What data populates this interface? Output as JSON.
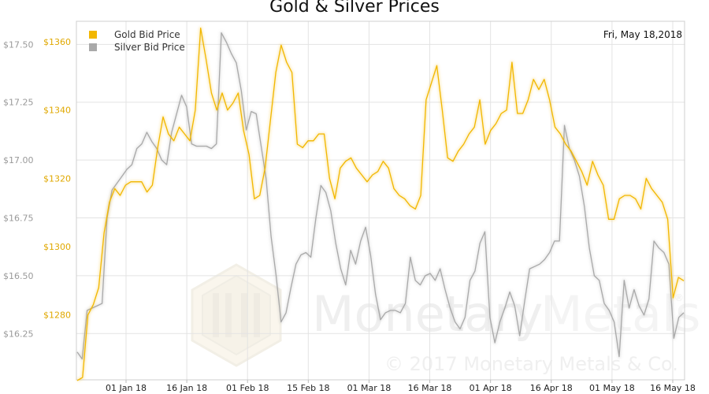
{
  "chart_data": {
    "type": "line",
    "title": "Gold & Silver Prices",
    "date_label": "Fri, May 18,2018",
    "grid": true,
    "legend_placement": "top-left",
    "x_ticks": [
      "01 Jan 18",
      "16 Jan 18",
      "01 Feb 18",
      "15 Feb 18",
      "01 Mar 18",
      "16 Mar 18",
      "01 Apr 18",
      "16 Apr 18",
      "01 May 18",
      "16 May 18"
    ],
    "left_axis": {
      "series": "Silver Bid Price",
      "unit_prefix": "$",
      "ticks": [
        "$16.25",
        "$16.50",
        "$16.75",
        "$17.00",
        "$17.25",
        "$17.50"
      ],
      "range": [
        16.05,
        17.6
      ]
    },
    "right_axis": {
      "series": "Gold Bid Price",
      "unit_prefix": "$",
      "ticks": [
        "$1280",
        "$1300",
        "$1320",
        "$1340",
        "$1360"
      ],
      "range": [
        1261,
        1366
      ]
    },
    "series": [
      {
        "name": "Gold Bid Price",
        "color": "#f2b700",
        "axis": "right",
        "values": [
          1260.8,
          1261.7,
          1280.0,
          1283.0,
          1288.0,
          1304.0,
          1313.0,
          1317.0,
          1315.0,
          1318.0,
          1319.0,
          1319.0,
          1319.0,
          1316.0,
          1318.0,
          1329.0,
          1338.0,
          1333.0,
          1331.0,
          1335.0,
          1333.0,
          1331.0,
          1340.0,
          1364.0,
          1355.0,
          1345.0,
          1340.0,
          1345.0,
          1340.0,
          1342.0,
          1345.0,
          1334.0,
          1327.0,
          1314.0,
          1315.0,
          1323.0,
          1337.0,
          1351.0,
          1359.0,
          1354.0,
          1351.0,
          1330.0,
          1329.0,
          1331.0,
          1331.0,
          1333.0,
          1333.0,
          1320.0,
          1314.0,
          1323.0,
          1325.0,
          1326.0,
          1323.0,
          1321.0,
          1319.0,
          1321.0,
          1322.0,
          1325.0,
          1323.0,
          1317.0,
          1315.0,
          1314.0,
          1312.0,
          1311.0,
          1315.0,
          1343.0,
          1348.0,
          1353.0,
          1340.0,
          1326.0,
          1325.0,
          1328.0,
          1330.0,
          1333.0,
          1335.0,
          1343.0,
          1330.0,
          1334.0,
          1336.0,
          1339.0,
          1340.0,
          1354.0,
          1339.0,
          1339.0,
          1343.0,
          1349.0,
          1346.0,
          1349.0,
          1343.0,
          1335.0,
          1333.0,
          1330.0,
          1328.0,
          1325.0,
          1322.0,
          1318.0,
          1325.0,
          1321.0,
          1318.0,
          1308.0,
          1308.0,
          1314.0,
          1315.0,
          1315.0,
          1314.0,
          1311.0,
          1320.0,
          1317.0,
          1315.0,
          1313.0,
          1308.0,
          1285.0,
          1291.0,
          1290.0
        ]
      },
      {
        "name": "Silver Bid Price",
        "color": "#a9a9a9",
        "axis": "left",
        "values": [
          16.17,
          16.14,
          16.35,
          16.36,
          16.37,
          16.38,
          16.75,
          16.87,
          16.9,
          16.93,
          16.96,
          16.98,
          17.05,
          17.07,
          17.12,
          17.08,
          17.05,
          17.0,
          16.98,
          17.12,
          17.2,
          17.28,
          17.23,
          17.07,
          17.06,
          17.06,
          17.06,
          17.05,
          17.07,
          17.55,
          17.51,
          17.46,
          17.42,
          17.3,
          17.13,
          17.21,
          17.2,
          17.06,
          16.92,
          16.67,
          16.5,
          16.3,
          16.34,
          16.45,
          16.55,
          16.59,
          16.6,
          16.58,
          16.75,
          16.89,
          16.86,
          16.78,
          16.64,
          16.53,
          16.46,
          16.61,
          16.55,
          16.65,
          16.71,
          16.59,
          16.42,
          16.31,
          16.34,
          16.35,
          16.35,
          16.34,
          16.38,
          16.58,
          16.48,
          16.46,
          16.5,
          16.51,
          16.48,
          16.53,
          16.44,
          16.36,
          16.3,
          16.27,
          16.32,
          16.48,
          16.52,
          16.64,
          16.69,
          16.32,
          16.21,
          16.3,
          16.36,
          16.43,
          16.37,
          16.24,
          16.39,
          16.53,
          16.54,
          16.55,
          16.57,
          16.6,
          16.65,
          16.65,
          17.15,
          17.05,
          17.0,
          16.93,
          16.8,
          16.62,
          16.5,
          16.48,
          16.38,
          16.35,
          16.3,
          16.15,
          16.48,
          16.36,
          16.44,
          16.37,
          16.33,
          16.4,
          16.65,
          16.62,
          16.6,
          16.55,
          16.23,
          16.32,
          16.34
        ]
      }
    ],
    "watermark": {
      "brand_first": "Monetary",
      "brand_second": "Metals",
      "copyright": "© 2017 Monetary Metals & Co.",
      "registered_mark": "®"
    }
  }
}
